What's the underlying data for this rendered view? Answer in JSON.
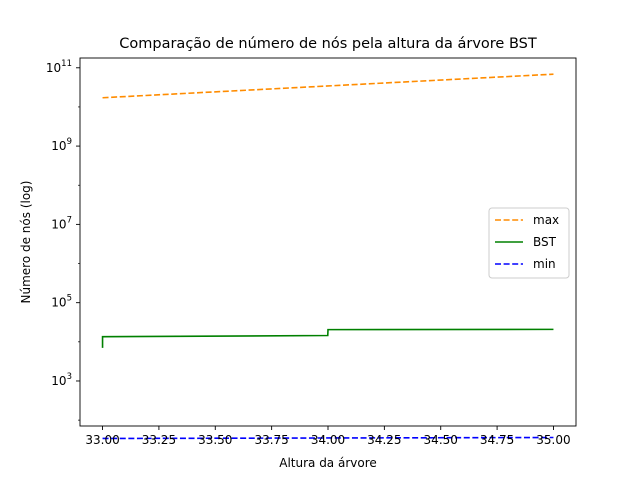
{
  "chart_data": {
    "type": "line",
    "title": "Comparação de número de nós pela altura da árvore BST",
    "xlabel": "Altura da árvore",
    "ylabel": "Número de nós (log)",
    "yscale": "log",
    "xlim": [
      32.9,
      35.1
    ],
    "ylim_exponent": [
      1.85,
      11.25
    ],
    "grid": false,
    "legend_position": "center-right",
    "x_ticks": [
      33.0,
      33.25,
      33.5,
      33.75,
      34.0,
      34.25,
      34.5,
      34.75,
      35.0
    ],
    "x_tick_labels": [
      "33.00",
      "33.25",
      "33.50",
      "33.75",
      "34.00",
      "34.25",
      "34.50",
      "34.75",
      "35.00"
    ],
    "y_tick_exponents": [
      3,
      5,
      7,
      9,
      11
    ],
    "y_tick_labels": [
      {
        "base": "10",
        "exp": "3"
      },
      {
        "base": "10",
        "exp": "5"
      },
      {
        "base": "10",
        "exp": "7"
      },
      {
        "base": "10",
        "exp": "9"
      },
      {
        "base": "10",
        "exp": "11"
      }
    ],
    "series": [
      {
        "name": "max",
        "color": "#ff8c00",
        "dash": "dashed",
        "points": [
          [
            33.0,
            17179869183
          ],
          [
            34.0,
            34359738367
          ],
          [
            35.0,
            68719476735
          ]
        ]
      },
      {
        "name": "BST",
        "color": "#008000",
        "dash": "solid",
        "points": [
          [
            33.0,
            7000
          ],
          [
            33.0,
            13500
          ],
          [
            33.999,
            14500
          ],
          [
            34.0,
            20500
          ],
          [
            35.0,
            20800
          ]
        ]
      },
      {
        "name": "min",
        "color": "#0000ff",
        "dash": "dashed",
        "points": [
          [
            33.0,
            34
          ],
          [
            34.0,
            35
          ],
          [
            35.0,
            36
          ]
        ]
      }
    ]
  }
}
